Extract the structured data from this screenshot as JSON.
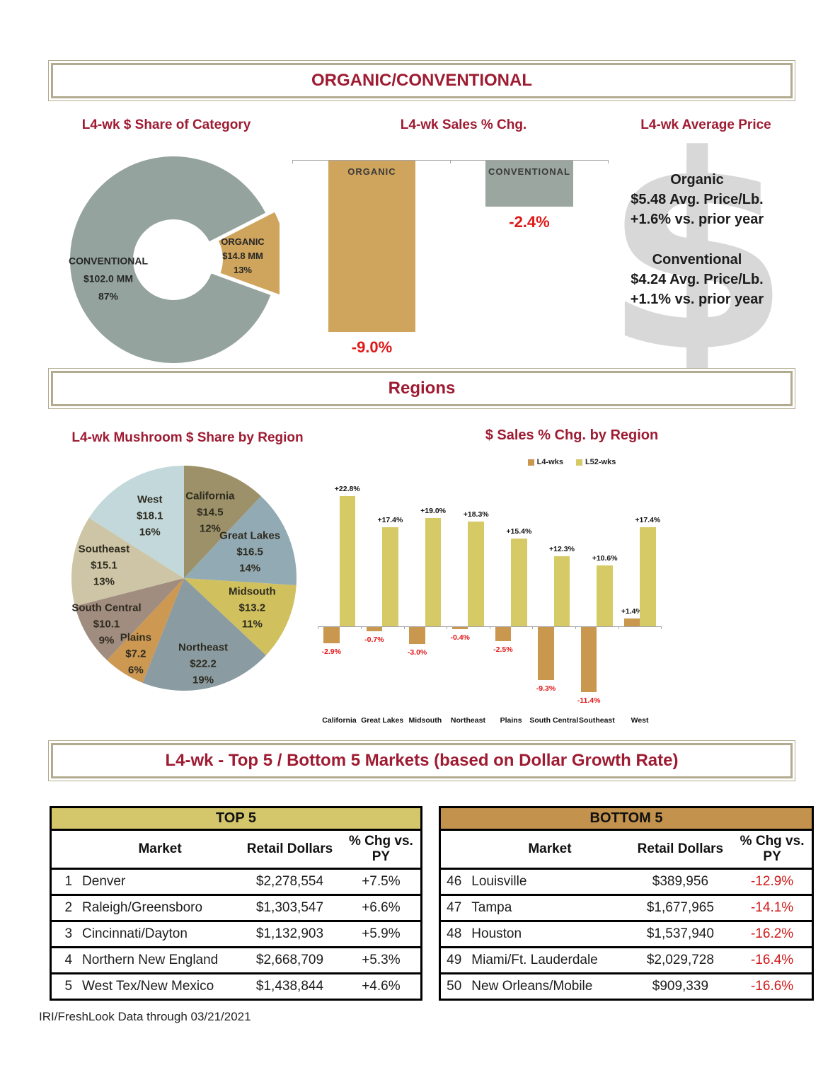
{
  "sections": {
    "title_band": "ORGANIC/CONVENTIONAL",
    "share_title": "L4-wk $ Share of Category",
    "sales_title": "L4-wk Sales % Chg.",
    "price_title": "L4-wk Average Price",
    "regions_band": "Regions",
    "pie_title": "L4-wk Mushroom $ Share by Region",
    "region_sales_title": "$ Sales % Chg. by Region",
    "markets_band": "L4-wk - Top 5 / Bottom 5 Markets (based on Dollar Growth Rate)"
  },
  "price_panel": {
    "dollar_glyph": "$",
    "organic": {
      "name": "Organic",
      "price": "$5.48 Avg. Price/Lb.",
      "change": "+1.6% vs. prior year"
    },
    "conventional": {
      "name": "Conventional",
      "price": "$4.24  Avg. Price/Lb.",
      "change": "+1.1% vs. prior year"
    }
  },
  "footer": "IRI/FreshLook Data through 03/21/2021",
  "colors": {
    "heading_crimson": "#9e1b32",
    "negative_red": "#e01717",
    "band_border": "#b3ab90",
    "dollar_gray": "#d8d8d8"
  },
  "chart_data": [
    {
      "id": "category_share_donut",
      "type": "pie",
      "subtype": "donut",
      "title": "L4-wk $ Share of Category",
      "labels": [
        "CONVENTIONAL",
        "ORGANIC"
      ],
      "values_pct": [
        87,
        13
      ],
      "dollar_labels": [
        "$102.0 MM",
        "$14.8 MM"
      ],
      "pct_labels": [
        "87%",
        "13%"
      ],
      "colors": [
        "#94a39d",
        "#cfa45c"
      ]
    },
    {
      "id": "sales_pct_change",
      "type": "bar",
      "title": "L4-wk Sales % Chg.",
      "categories": [
        "ORGANIC",
        "CONVENTIONAL"
      ],
      "values": [
        -9.0,
        -2.4
      ],
      "value_labels": [
        "-9.0%",
        "-2.4%"
      ],
      "colors": [
        "#cfa45c",
        "#9ba6a1"
      ],
      "baseline": 0,
      "gridlines": false
    },
    {
      "id": "region_share_pie",
      "type": "pie",
      "title": "L4-wk Mushroom $ Share by Region",
      "labels": [
        "California",
        "Great Lakes",
        "Midsouth",
        "Northeast",
        "Plains",
        "South Central",
        "Southeast",
        "West"
      ],
      "values_pct": [
        12,
        14,
        11,
        19,
        6,
        9,
        13,
        16
      ],
      "dollar_labels": [
        "$14.5",
        "$16.5",
        "$13.2",
        "$22.2",
        "$7.2",
        "$10.1",
        "$15.1",
        "$18.1"
      ],
      "pct_labels": [
        "12%",
        "14%",
        "11%",
        "19%",
        "6%",
        "9%",
        "13%",
        "16%"
      ],
      "colors": [
        "#9c9168",
        "#92aab4",
        "#d0c05e",
        "#8a9ba1",
        "#cc9852",
        "#a18d7f",
        "#cdc5a5",
        "#c2d8da"
      ]
    },
    {
      "id": "region_sales_change",
      "type": "bar",
      "title": "$ Sales % Chg. by Region",
      "categories": [
        "California",
        "Great Lakes",
        "Midsouth",
        "Northeast",
        "Plains",
        "South Central",
        "Southeast",
        "West"
      ],
      "series": [
        {
          "name": "L4-wks",
          "color": "#c9974e",
          "values": [
            -2.9,
            -0.7,
            -3.0,
            -0.4,
            -2.5,
            -9.3,
            -11.4,
            1.4
          ],
          "value_labels": [
            "-2.9%",
            "-0.7%",
            "-3.0%",
            "-0.4%",
            "-2.5%",
            "-9.3%",
            "-11.4%",
            "+1.4%"
          ]
        },
        {
          "name": "L52-wks",
          "color": "#d6ca67",
          "values": [
            22.8,
            17.4,
            19.0,
            18.3,
            15.4,
            12.3,
            10.6,
            17.4
          ],
          "value_labels": [
            "+22.8%",
            "+17.4%",
            "+19.0%",
            "+18.3%",
            "+15.4%",
            "+12.3%",
            "+10.6%",
            "+17.4%"
          ]
        }
      ],
      "legend_position": "top",
      "gridlines": false
    },
    {
      "id": "top5",
      "type": "table",
      "title": "TOP 5",
      "header_color": "#d4c66b",
      "columns": [
        "",
        "Market",
        "Retail Dollars",
        "% Chg vs. PY"
      ],
      "rows": [
        [
          "1",
          "Denver",
          "$2,278,554",
          "+7.5%"
        ],
        [
          "2",
          "Raleigh/Greensboro",
          "$1,303,547",
          "+6.6%"
        ],
        [
          "3",
          "Cincinnati/Dayton",
          "$1,132,903",
          "+5.9%"
        ],
        [
          "4",
          "Northern New England",
          "$2,668,709",
          "+5.3%"
        ],
        [
          "5",
          "West Tex/New Mexico",
          "$1,438,844",
          "+4.6%"
        ]
      ]
    },
    {
      "id": "bottom5",
      "type": "table",
      "title": "BOTTOM 5",
      "header_color": "#c3924d",
      "columns": [
        "",
        "Market",
        "Retail Dollars",
        "% Chg vs. PY"
      ],
      "rows": [
        [
          "46",
          "Louisville",
          "$389,956",
          "-12.9%"
        ],
        [
          "47",
          "Tampa",
          "$1,677,965",
          "-14.1%"
        ],
        [
          "48",
          "Houston",
          "$1,537,940",
          "-16.2%"
        ],
        [
          "49",
          "Miami/Ft. Lauderdale",
          "$2,029,728",
          "-16.4%"
        ],
        [
          "50",
          "New Orleans/Mobile",
          "$909,339",
          "-16.6%"
        ]
      ]
    }
  ]
}
